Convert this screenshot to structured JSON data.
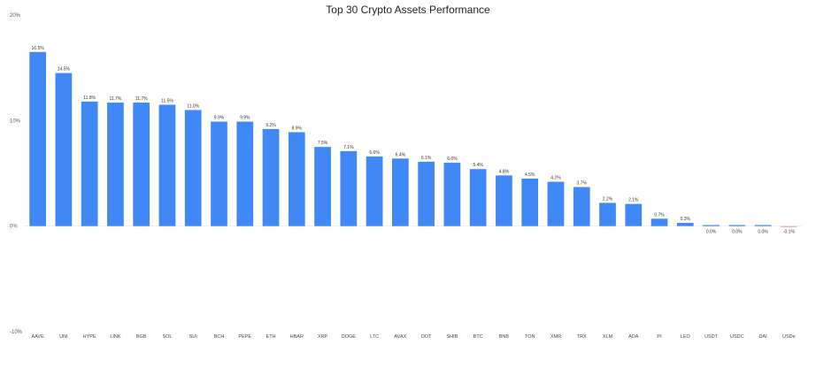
{
  "chart_data": {
    "type": "bar",
    "title": "Top 30 Crypto Assets Performance",
    "xlabel": "",
    "ylabel": "",
    "ylim": [
      -10,
      20
    ],
    "yticks": [
      20,
      10,
      0,
      -10
    ],
    "ytick_labels": [
      "20%",
      "10%",
      "0%",
      "-10%"
    ],
    "grid": false,
    "bar_color": "#3f88f5",
    "negative_bar_color": "#f4a6a6",
    "categories": [
      "AAVE",
      "UNI",
      "HYPE",
      "LINK",
      "BGB",
      "SOL",
      "SUI",
      "BCH",
      "PEPE",
      "ETH",
      "HBAR",
      "XRP",
      "DOGE",
      "LTC",
      "AVAX",
      "DOT",
      "SHIB",
      "BTC",
      "BNB",
      "TON",
      "XMR",
      "TRX",
      "XLM",
      "ADA",
      "PI",
      "LEO",
      "USDT",
      "USDC",
      "DAI",
      "USDe"
    ],
    "values": [
      16.5,
      14.5,
      11.8,
      11.7,
      11.7,
      11.5,
      11.0,
      9.9,
      9.9,
      9.2,
      8.9,
      7.5,
      7.1,
      6.6,
      6.4,
      6.1,
      6.0,
      5.4,
      4.8,
      4.5,
      4.2,
      3.7,
      2.2,
      2.1,
      0.7,
      0.3,
      0.0,
      0.0,
      0.0,
      -0.1
    ],
    "value_labels": [
      "16.5%",
      "14.5%",
      "11.8%",
      "11.7%",
      "11.7%",
      "11.5%",
      "11.0%",
      "9.9%",
      "9.9%",
      "9.2%",
      "8.9%",
      "7.5%",
      "7.1%",
      "6.6%",
      "6.4%",
      "6.1%",
      "6.0%",
      "5.4%",
      "4.8%",
      "4.5%",
      "4.2%",
      "3.7%",
      "2.2%",
      "2.1%",
      "0.7%",
      "0.3%",
      "0.0%",
      "0.0%",
      "0.0%",
      "-0.1%"
    ]
  }
}
